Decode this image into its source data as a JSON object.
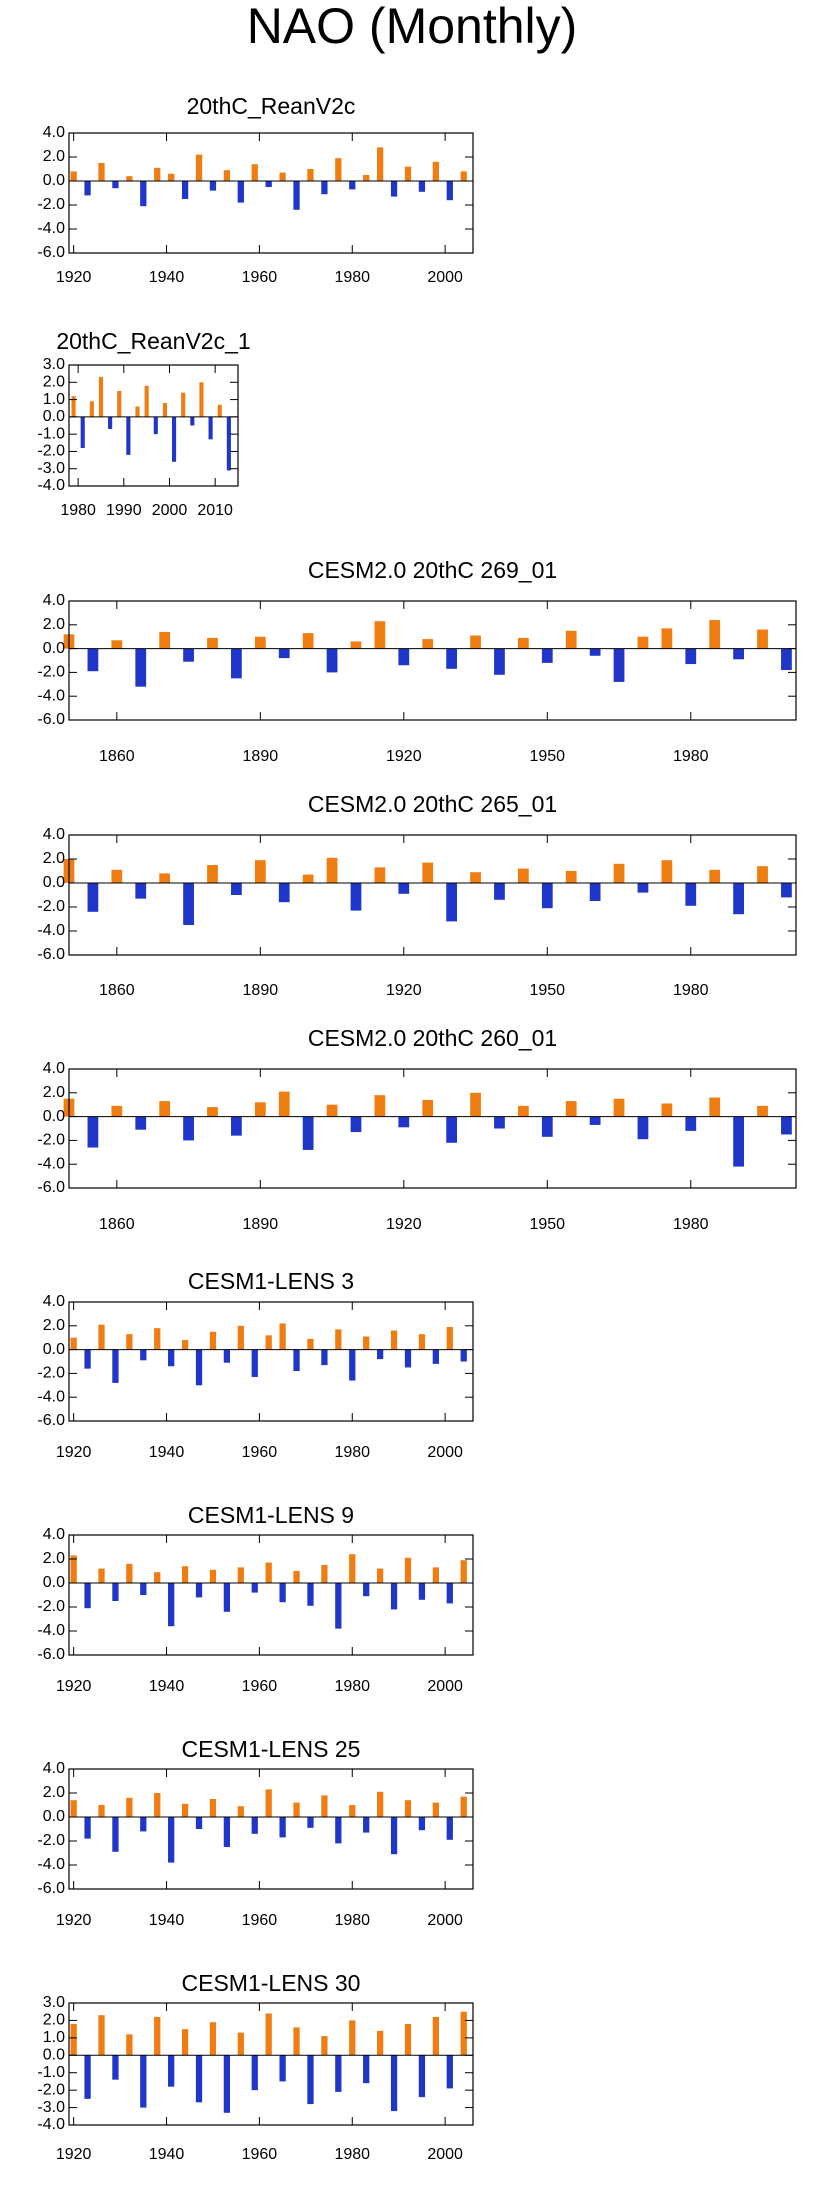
{
  "title": "NAO (Monthly)",
  "chart_data": [
    {
      "type": "bar",
      "title": "20thC_ReanV2c",
      "x": [
        1920,
        1923,
        1926,
        1929,
        1932,
        1935,
        1938,
        1941,
        1944,
        1947,
        1950,
        1953,
        1956,
        1959,
        1962,
        1965,
        1968,
        1971,
        1974,
        1977,
        1980,
        1983,
        1986,
        1989,
        1992,
        1995,
        1998,
        2001,
        2004
      ],
      "values": [
        0.8,
        -1.2,
        1.5,
        -0.6,
        0.4,
        -2.1,
        1.1,
        0.6,
        -1.5,
        2.2,
        -0.8,
        0.9,
        -1.8,
        1.4,
        -0.5,
        0.7,
        -2.4,
        1.0,
        -1.1,
        1.9,
        -0.7,
        0.5,
        2.8,
        -1.3,
        1.2,
        -0.9,
        1.6,
        -1.6,
        0.8
      ],
      "xlim": [
        1919,
        2006
      ],
      "ylim": [
        -6,
        4
      ],
      "xticks": [
        1920,
        1940,
        1960,
        1980,
        2000
      ],
      "yticks": [
        {
          "value": 4,
          "label": "4.0"
        },
        {
          "value": 2,
          "label": "2.0"
        },
        {
          "value": 0,
          "label": "0.0"
        },
        {
          "value": -2,
          "label": "-2.0"
        },
        {
          "value": -4,
          "label": "-4.0"
        },
        {
          "value": -6,
          "label": "-6.0"
        }
      ],
      "pos_color": "#ef7d12",
      "neg_color": "#1f36c8"
    },
    {
      "type": "bar",
      "title": "20thC_ReanV2c_1",
      "x": [
        1979,
        1981,
        1983,
        1985,
        1987,
        1989,
        1991,
        1993,
        1995,
        1997,
        1999,
        2001,
        2003,
        2005,
        2007,
        2009,
        2011,
        2013
      ],
      "values": [
        1.2,
        -1.8,
        0.9,
        2.3,
        -0.7,
        1.5,
        -2.2,
        0.6,
        1.8,
        -1.0,
        0.8,
        -2.6,
        1.4,
        -0.5,
        2.0,
        -1.3,
        0.7,
        -3.1
      ],
      "xlim": [
        1978,
        2015
      ],
      "ylim": [
        -4,
        3
      ],
      "xticks": [
        1980,
        1990,
        2000,
        2010
      ],
      "yticks": [
        {
          "value": 3,
          "label": "3.0"
        },
        {
          "value": 2,
          "label": "2.0"
        },
        {
          "value": 1,
          "label": "1.0"
        },
        {
          "value": 0,
          "label": "0.0"
        },
        {
          "value": -1,
          "label": "-1.0"
        },
        {
          "value": -2,
          "label": "-2.0"
        },
        {
          "value": -3,
          "label": "-3.0"
        },
        {
          "value": -4,
          "label": "-4.0"
        }
      ],
      "pos_color": "#ef7d12",
      "neg_color": "#1f36c8"
    },
    {
      "type": "bar",
      "title": "CESM2.0 20thC 269_01",
      "x": [
        1850,
        1855,
        1860,
        1865,
        1870,
        1875,
        1880,
        1885,
        1890,
        1895,
        1900,
        1905,
        1910,
        1915,
        1920,
        1925,
        1930,
        1935,
        1940,
        1945,
        1950,
        1955,
        1960,
        1965,
        1970,
        1975,
        1980,
        1985,
        1990,
        1995,
        2000
      ],
      "values": [
        1.2,
        -1.9,
        0.7,
        -3.2,
        1.4,
        -1.1,
        0.9,
        -2.5,
        1.0,
        -0.8,
        1.3,
        -2.0,
        0.6,
        2.3,
        -1.4,
        0.8,
        -1.7,
        1.1,
        -2.2,
        0.9,
        -1.2,
        1.5,
        -0.6,
        -2.8,
        1.0,
        1.7,
        -1.3,
        2.4,
        -0.9,
        1.6,
        -1.8
      ],
      "xlim": [
        1850,
        2002
      ],
      "ylim": [
        -6,
        4
      ],
      "xticks": [
        1860,
        1890,
        1920,
        1950,
        1980
      ],
      "yticks": [
        {
          "value": 4,
          "label": "4.0"
        },
        {
          "value": 2,
          "label": "2.0"
        },
        {
          "value": 0,
          "label": "0.0"
        },
        {
          "value": -2,
          "label": "-2.0"
        },
        {
          "value": -4,
          "label": "-4.0"
        },
        {
          "value": -6,
          "label": "-6.0"
        }
      ],
      "pos_color": "#ef7d12",
      "neg_color": "#1f36c8"
    },
    {
      "type": "bar",
      "title": "CESM2.0 20thC 265_01",
      "x": [
        1850,
        1855,
        1860,
        1865,
        1870,
        1875,
        1880,
        1885,
        1890,
        1895,
        1900,
        1905,
        1910,
        1915,
        1920,
        1925,
        1930,
        1935,
        1940,
        1945,
        1950,
        1955,
        1960,
        1965,
        1970,
        1975,
        1980,
        1985,
        1990,
        1995,
        2000
      ],
      "values": [
        2.0,
        -2.4,
        1.1,
        -1.3,
        0.8,
        -3.5,
        1.5,
        -1.0,
        1.9,
        -1.6,
        0.7,
        2.1,
        -2.3,
        1.3,
        -0.9,
        1.7,
        -3.2,
        0.9,
        -1.4,
        1.2,
        -2.1,
        1.0,
        -1.5,
        1.6,
        -0.8,
        1.9,
        -1.9,
        1.1,
        -2.6,
        1.4,
        -1.2
      ],
      "xlim": [
        1850,
        2002
      ],
      "ylim": [
        -6,
        4
      ],
      "xticks": [
        1860,
        1890,
        1920,
        1950,
        1980
      ],
      "yticks": [
        {
          "value": 4,
          "label": "4.0"
        },
        {
          "value": 2,
          "label": "2.0"
        },
        {
          "value": 0,
          "label": "0.0"
        },
        {
          "value": -2,
          "label": "-2.0"
        },
        {
          "value": -4,
          "label": "-4.0"
        },
        {
          "value": -6,
          "label": "-6.0"
        }
      ],
      "pos_color": "#ef7d12",
      "neg_color": "#1f36c8"
    },
    {
      "type": "bar",
      "title": "CESM2.0 20thC 260_01",
      "x": [
        1850,
        1855,
        1860,
        1865,
        1870,
        1875,
        1880,
        1885,
        1890,
        1895,
        1900,
        1905,
        1910,
        1915,
        1920,
        1925,
        1930,
        1935,
        1940,
        1945,
        1950,
        1955,
        1960,
        1965,
        1970,
        1975,
        1980,
        1985,
        1990,
        1995,
        2000
      ],
      "values": [
        1.5,
        -2.6,
        0.9,
        -1.1,
        1.3,
        -2.0,
        0.8,
        -1.6,
        1.2,
        2.1,
        -2.8,
        1.0,
        -1.3,
        1.8,
        -0.9,
        1.4,
        -2.2,
        2.0,
        -1.0,
        0.9,
        -1.7,
        1.3,
        -0.7,
        1.5,
        -1.9,
        1.1,
        -1.2,
        1.6,
        -4.2,
        0.9,
        -1.5
      ],
      "xlim": [
        1850,
        2002
      ],
      "ylim": [
        -6,
        4
      ],
      "xticks": [
        1860,
        1890,
        1920,
        1950,
        1980
      ],
      "yticks": [
        {
          "value": 4,
          "label": "4.0"
        },
        {
          "value": 2,
          "label": "2.0"
        },
        {
          "value": 0,
          "label": "0.0"
        },
        {
          "value": -2,
          "label": "-2.0"
        },
        {
          "value": -4,
          "label": "-4.0"
        },
        {
          "value": -6,
          "label": "-6.0"
        }
      ],
      "pos_color": "#ef7d12",
      "neg_color": "#1f36c8"
    },
    {
      "type": "bar",
      "title": "CESM1-LENS 3",
      "x": [
        1920,
        1923,
        1926,
        1929,
        1932,
        1935,
        1938,
        1941,
        1944,
        1947,
        1950,
        1953,
        1956,
        1959,
        1962,
        1965,
        1968,
        1971,
        1974,
        1977,
        1980,
        1983,
        1986,
        1989,
        1992,
        1995,
        1998,
        2001,
        2004
      ],
      "values": [
        1.0,
        -1.6,
        2.1,
        -2.8,
        1.3,
        -0.9,
        1.8,
        -1.4,
        0.8,
        -3.0,
        1.5,
        -1.1,
        2.0,
        -2.3,
        1.2,
        2.2,
        -1.8,
        0.9,
        -1.3,
        1.7,
        -2.6,
        1.1,
        -0.8,
        1.6,
        -1.5,
        1.3,
        -1.2,
        1.9,
        -1.0
      ],
      "xlim": [
        1919,
        2006
      ],
      "ylim": [
        -6,
        4
      ],
      "xticks": [
        1920,
        1940,
        1960,
        1980,
        2000
      ],
      "yticks": [
        {
          "value": 4,
          "label": "4.0"
        },
        {
          "value": 2,
          "label": "2.0"
        },
        {
          "value": 0,
          "label": "0.0"
        },
        {
          "value": -2,
          "label": "-2.0"
        },
        {
          "value": -4,
          "label": "-4.0"
        },
        {
          "value": -6,
          "label": "-6.0"
        }
      ],
      "pos_color": "#ef7d12",
      "neg_color": "#1f36c8"
    },
    {
      "type": "bar",
      "title": "CESM1-LENS 9",
      "x": [
        1920,
        1923,
        1926,
        1929,
        1932,
        1935,
        1938,
        1941,
        1944,
        1947,
        1950,
        1953,
        1956,
        1959,
        1962,
        1965,
        1968,
        1971,
        1974,
        1977,
        1980,
        1983,
        1986,
        1989,
        1992,
        1995,
        1998,
        2001,
        2004
      ],
      "values": [
        2.3,
        -2.1,
        1.2,
        -1.5,
        1.6,
        -1.0,
        0.9,
        -3.6,
        1.4,
        -1.2,
        1.1,
        -2.4,
        1.3,
        -0.8,
        1.7,
        -1.6,
        1.0,
        -1.9,
        1.5,
        -3.8,
        2.4,
        -1.1,
        1.2,
        -2.2,
        2.1,
        -1.4,
        1.3,
        -1.7,
        1.9
      ],
      "xlim": [
        1919,
        2006
      ],
      "ylim": [
        -6,
        4
      ],
      "xticks": [
        1920,
        1940,
        1960,
        1980,
        2000
      ],
      "yticks": [
        {
          "value": 4,
          "label": "4.0"
        },
        {
          "value": 2,
          "label": "2.0"
        },
        {
          "value": 0,
          "label": "0.0"
        },
        {
          "value": -2,
          "label": "-2.0"
        },
        {
          "value": -4,
          "label": "-4.0"
        },
        {
          "value": -6,
          "label": "-6.0"
        }
      ],
      "pos_color": "#ef7d12",
      "neg_color": "#1f36c8"
    },
    {
      "type": "bar",
      "title": "CESM1-LENS 25",
      "x": [
        1920,
        1923,
        1926,
        1929,
        1932,
        1935,
        1938,
        1941,
        1944,
        1947,
        1950,
        1953,
        1956,
        1959,
        1962,
        1965,
        1968,
        1971,
        1974,
        1977,
        1980,
        1983,
        1986,
        1989,
        1992,
        1995,
        1998,
        2001,
        2004
      ],
      "values": [
        1.4,
        -1.8,
        1.0,
        -2.9,
        1.6,
        -1.2,
        2.0,
        -3.8,
        1.1,
        -1.0,
        1.5,
        -2.5,
        0.9,
        -1.4,
        2.3,
        -1.7,
        1.2,
        -0.9,
        1.8,
        -2.2,
        1.0,
        -1.3,
        2.1,
        -3.1,
        1.4,
        -1.1,
        1.2,
        -1.9,
        1.7
      ],
      "xlim": [
        1919,
        2006
      ],
      "ylim": [
        -6,
        4
      ],
      "xticks": [
        1920,
        1940,
        1960,
        1980,
        2000
      ],
      "yticks": [
        {
          "value": 4,
          "label": "4.0"
        },
        {
          "value": 2,
          "label": "2.0"
        },
        {
          "value": 0,
          "label": "0.0"
        },
        {
          "value": -2,
          "label": "-2.0"
        },
        {
          "value": -4,
          "label": "-4.0"
        },
        {
          "value": -6,
          "label": "-6.0"
        }
      ],
      "pos_color": "#ef7d12",
      "neg_color": "#1f36c8"
    },
    {
      "type": "bar",
      "title": "CESM1-LENS 30",
      "x": [
        1920,
        1923,
        1926,
        1929,
        1932,
        1935,
        1938,
        1941,
        1944,
        1947,
        1950,
        1953,
        1956,
        1959,
        1962,
        1965,
        1968,
        1971,
        1974,
        1977,
        1980,
        1983,
        1986,
        1989,
        1992,
        1995,
        1998,
        2001,
        2004
      ],
      "values": [
        1.8,
        -2.5,
        2.3,
        -1.4,
        1.2,
        -3.0,
        2.2,
        -1.8,
        1.5,
        -2.7,
        1.9,
        -3.3,
        1.3,
        -2.0,
        2.4,
        -1.5,
        1.6,
        -2.8,
        1.1,
        -2.1,
        2.0,
        -1.6,
        1.4,
        -3.2,
        1.8,
        -2.4,
        2.2,
        -1.9,
        2.5
      ],
      "xlim": [
        1919,
        2006
      ],
      "ylim": [
        -4,
        3
      ],
      "xticks": [
        1920,
        1940,
        1960,
        1980,
        2000
      ],
      "yticks": [
        {
          "value": 3,
          "label": "3.0"
        },
        {
          "value": 2,
          "label": "2.0"
        },
        {
          "value": 1,
          "label": "1.0"
        },
        {
          "value": 0,
          "label": "0.0"
        },
        {
          "value": -1,
          "label": "-1.0"
        },
        {
          "value": -2,
          "label": "-2.0"
        },
        {
          "value": -3,
          "label": "-3.0"
        },
        {
          "value": -4,
          "label": "-4.0"
        }
      ],
      "pos_color": "#ef7d12",
      "neg_color": "#1f36c8"
    }
  ]
}
